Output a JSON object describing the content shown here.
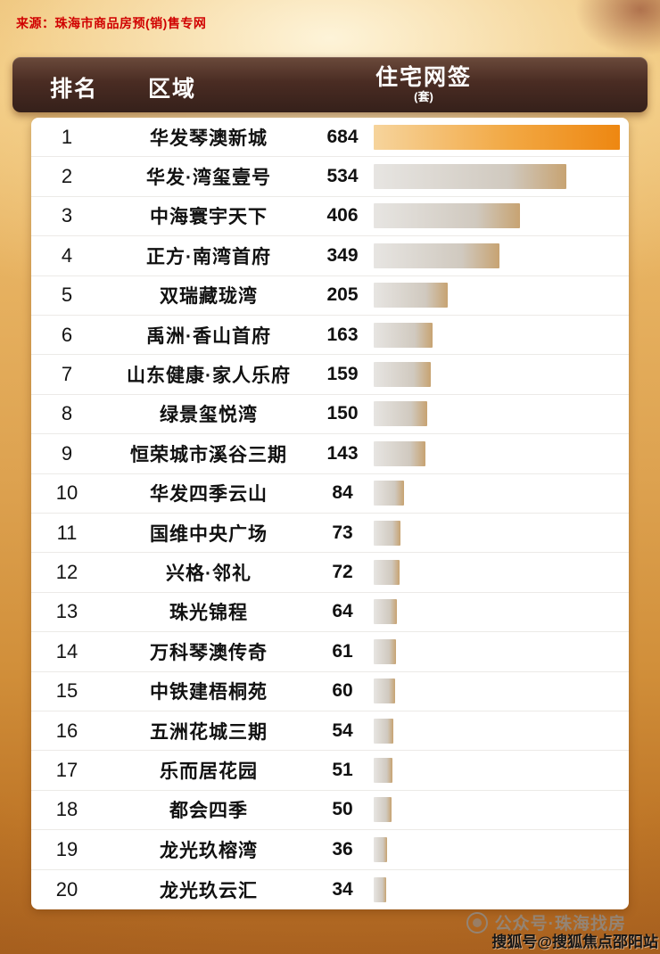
{
  "source_note": "来源：珠海市商品房预(销)售专网",
  "table_header": {
    "rank": "排名",
    "area": "区域",
    "value": "住宅网签",
    "unit": "(套)"
  },
  "chart_data": {
    "type": "bar",
    "orientation": "horizontal",
    "title": "住宅网签(套)",
    "xlabel": "",
    "ylabel": "",
    "xlim": [
      0,
      684
    ],
    "legend": false,
    "grid": false,
    "categories": [
      "华发琴澳新城",
      "华发·湾玺壹号",
      "中海寰宇天下",
      "正方·南湾首府",
      "双瑞藏珑湾",
      "禹洲·香山首府",
      "山东健康·家人乐府",
      "绿景玺悦湾",
      "恒荣城市溪谷三期",
      "华发四季云山",
      "国维中央广场",
      "兴格·邻礼",
      "珠光锦程",
      "万科琴澳传奇",
      "中铁建梧桐苑",
      "五洲花城三期",
      "乐而居花园",
      "都会四季",
      "龙光玖榕湾",
      "龙光玖云汇"
    ],
    "values": [
      684,
      534,
      406,
      349,
      205,
      163,
      159,
      150,
      143,
      84,
      73,
      72,
      64,
      61,
      60,
      54,
      51,
      50,
      36,
      34
    ],
    "highlight_first_bar": true
  },
  "watermark": {
    "text": "公众号·珠海找房"
  },
  "footer_badge": "搜狐号@搜狐焦点邵阳站",
  "colors": {
    "source_text": "#d00000",
    "header_bg": "#4a2c23",
    "header_text": "#ffffff",
    "table_bg": "#ffffff",
    "bar_accent": "#ee8711",
    "bar_gray": "#cfc8be",
    "background_gold": "#dda250"
  }
}
